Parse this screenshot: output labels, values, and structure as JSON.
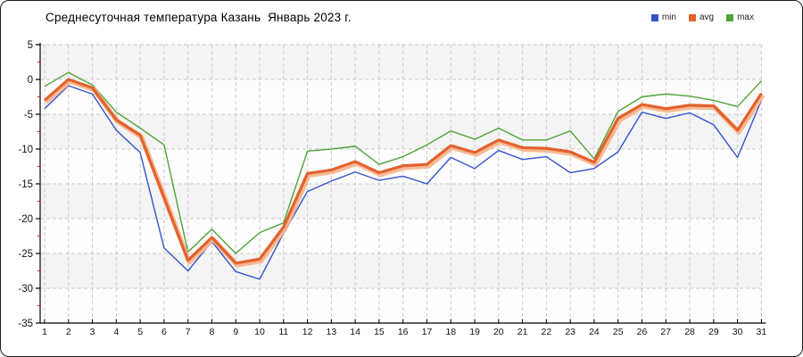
{
  "chart_data": {
    "type": "line",
    "title": "Среднесуточная температура Казань  Январь 2023 г.",
    "x": [
      1,
      2,
      3,
      4,
      5,
      6,
      7,
      8,
      9,
      10,
      11,
      12,
      13,
      14,
      15,
      16,
      17,
      18,
      19,
      20,
      21,
      22,
      23,
      24,
      25,
      26,
      27,
      28,
      29,
      30,
      31
    ],
    "series": [
      {
        "name": "min",
        "color": "#3353cd",
        "values": [
          -4.2,
          -0.9,
          -2.1,
          -7.3,
          -10.5,
          -24.2,
          -27.5,
          -23.3,
          -27.6,
          -28.7,
          -22.1,
          -16.1,
          -14.6,
          -13.3,
          -14.5,
          -13.9,
          -15.0,
          -11.2,
          -12.8,
          -10.2,
          -11.5,
          -11.1,
          -13.4,
          -12.8,
          -10.4,
          -4.7,
          -5.6,
          -4.8,
          -6.5,
          -11.2,
          -3.0
        ]
      },
      {
        "name": "avg",
        "color": "#e2622d",
        "halo": "#f6b28a",
        "values": [
          -3.0,
          0.0,
          -1.2,
          -5.8,
          -8.0,
          -17.0,
          -26.0,
          -22.7,
          -26.4,
          -25.8,
          -21.2,
          -13.5,
          -13.0,
          -11.8,
          -13.4,
          -12.4,
          -12.2,
          -9.5,
          -10.5,
          -8.7,
          -9.8,
          -9.9,
          -10.4,
          -11.9,
          -5.6,
          -3.6,
          -4.2,
          -3.7,
          -3.8,
          -7.3,
          -2.0
        ]
      },
      {
        "name": "max",
        "color": "#50a336",
        "values": [
          -1.0,
          1.0,
          -0.8,
          -4.7,
          -7.0,
          -9.4,
          -24.8,
          -21.5,
          -25.0,
          -22.0,
          -20.6,
          -10.3,
          -10.0,
          -9.6,
          -12.2,
          -11.1,
          -9.4,
          -7.4,
          -8.6,
          -7.0,
          -8.7,
          -8.7,
          -7.4,
          -11.4,
          -4.6,
          -2.5,
          -2.1,
          -2.4,
          -3.0,
          -3.9,
          -0.2
        ]
      }
    ],
    "ylim": [
      -35,
      5
    ],
    "y_ticks": [
      5,
      0,
      -5,
      -10,
      -15,
      -20,
      -25,
      -30,
      -35
    ],
    "y_minor_ticks": [
      2.5,
      -2.5,
      -7.5,
      -12.5,
      -17.5,
      -22.5,
      -27.5,
      -32.5
    ],
    "xlabel": "",
    "ylabel": "",
    "grid": "dashed",
    "legend_position": "top-right"
  },
  "style": {
    "grid_color": "#c9c9c9",
    "axis_color": "#000000",
    "minor_tick_color": "#cc2222",
    "band_color_a": "#f4f4f4",
    "band_color_b": "#fdfdfd",
    "tick_label_color": "#111111"
  }
}
